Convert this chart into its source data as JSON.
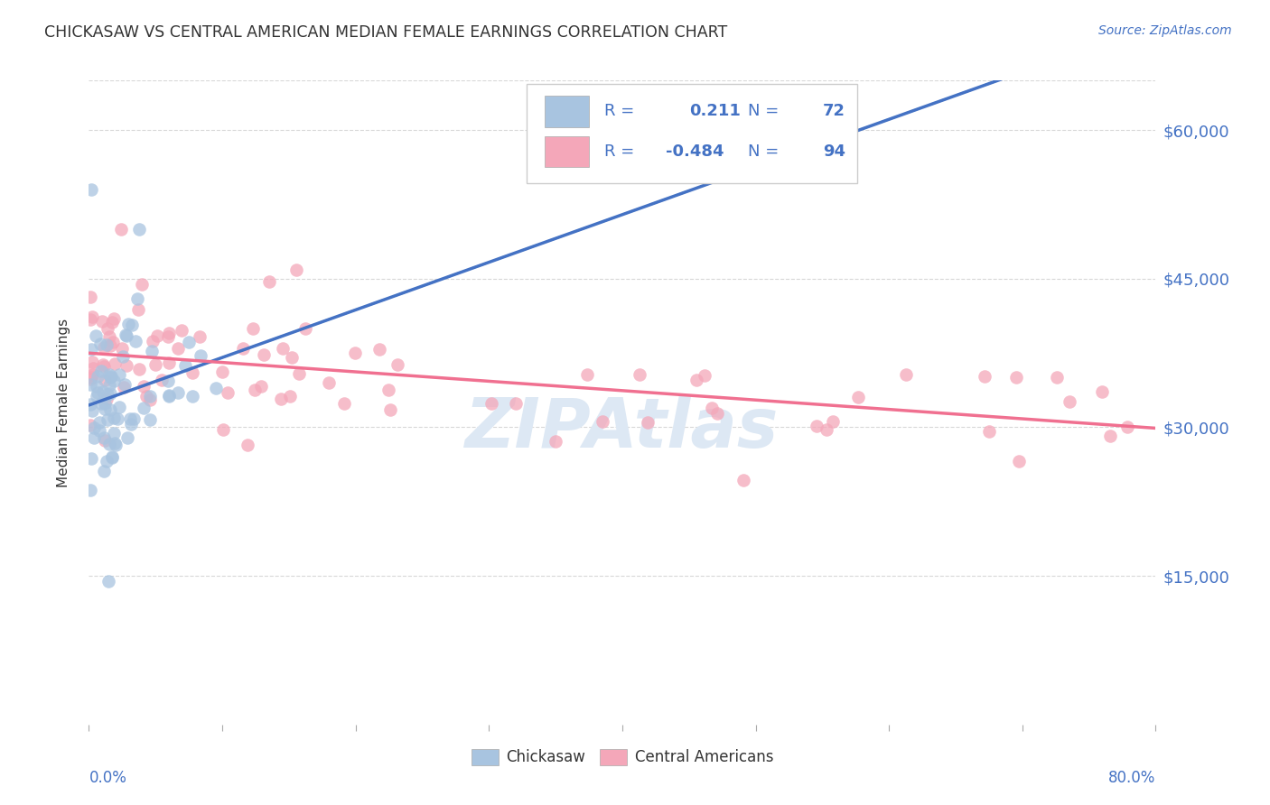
{
  "title": "CHICKASAW VS CENTRAL AMERICAN MEDIAN FEMALE EARNINGS CORRELATION CHART",
  "source": "Source: ZipAtlas.com",
  "ylabel": "Median Female Earnings",
  "yticks": [
    0,
    15000,
    30000,
    45000,
    60000
  ],
  "ytick_labels": [
    "",
    "$15,000",
    "$30,000",
    "$45,000",
    "$60,000"
  ],
  "ylim": [
    0,
    65000
  ],
  "xlim": [
    0.0,
    0.8
  ],
  "color_chickasaw": "#a8c4e0",
  "color_central": "#f4a7b9",
  "color_chickasaw_line": "#4472c4",
  "color_central_line": "#f07090",
  "color_chickasaw_dashed": "#9ab8d4",
  "color_axis_labels": "#4472c4",
  "color_text": "#333333",
  "background_color": "#ffffff",
  "grid_color": "#d8d8d8",
  "watermark_color": "#dde8f4"
}
